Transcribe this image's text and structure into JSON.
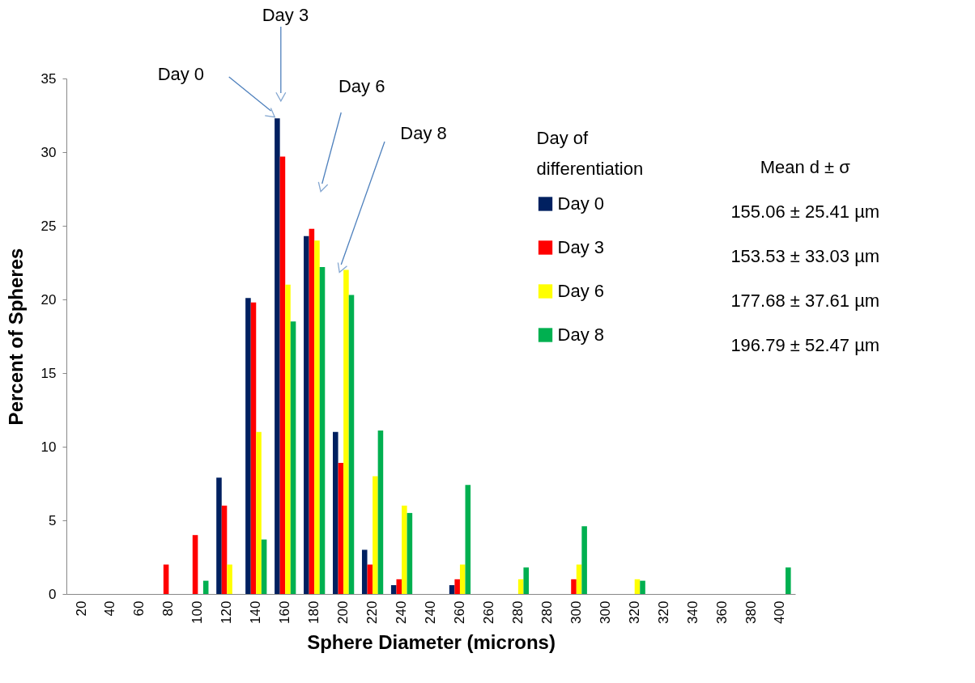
{
  "chart_data": {
    "type": "bar",
    "xlabel": "Sphere Diameter (microns)",
    "ylabel": "Percent of Spheres",
    "legend_title": "Day of differentiation",
    "categories": [
      "20",
      "40",
      "60",
      "80",
      "100",
      "120",
      "140",
      "160",
      "180",
      "200",
      "220",
      "240",
      "240",
      "260",
      "260",
      "280",
      "280",
      "300",
      "300",
      "320",
      "320",
      "340",
      "360",
      "380",
      "400"
    ],
    "series": [
      {
        "name": "Day 0",
        "color": "#002060",
        "values": [
          0,
          0,
          0,
          0,
          0,
          7.9,
          20.1,
          32.3,
          24.3,
          11,
          3,
          0.6,
          0,
          0.6,
          0,
          0,
          0,
          0,
          0,
          0,
          0,
          0,
          0,
          0,
          0
        ]
      },
      {
        "name": "Day 3",
        "color": "#ff0000",
        "values": [
          0,
          0,
          0,
          2,
          4,
          6,
          19.8,
          29.7,
          24.8,
          8.9,
          2,
          1,
          0,
          1,
          0,
          0,
          0,
          1,
          0,
          0,
          0,
          0,
          0,
          0,
          0
        ]
      },
      {
        "name": "Day 6",
        "color": "#ffff00",
        "values": [
          0,
          0,
          0,
          0,
          0,
          2,
          11,
          21,
          24,
          22,
          8,
          6,
          0,
          2,
          0,
          1,
          0,
          2,
          0,
          1,
          0,
          0,
          0,
          0,
          0
        ]
      },
      {
        "name": "Day 8",
        "color": "#00b050",
        "values": [
          0,
          0,
          0,
          0,
          0.9,
          0,
          3.7,
          18.5,
          22.2,
          20.3,
          11.1,
          5.5,
          0,
          7.4,
          0,
          1.8,
          0,
          4.6,
          0,
          0.9,
          0,
          0,
          0,
          0,
          1.8
        ]
      }
    ],
    "ylim": [
      0,
      35
    ],
    "yticks": [
      0,
      5,
      10,
      15,
      20,
      25,
      30,
      35
    ],
    "grid": false,
    "legend": "top right",
    "annotations": [
      "Day 0",
      "Day 3",
      "Day 6",
      "Day 8",
      "Mean d ± σ",
      "155.06 ± 25.41 µm",
      "153.53 ± 33.03 µm",
      "177.68 ± 37.61 µm",
      "196.79 ± 52.47 µm"
    ]
  }
}
